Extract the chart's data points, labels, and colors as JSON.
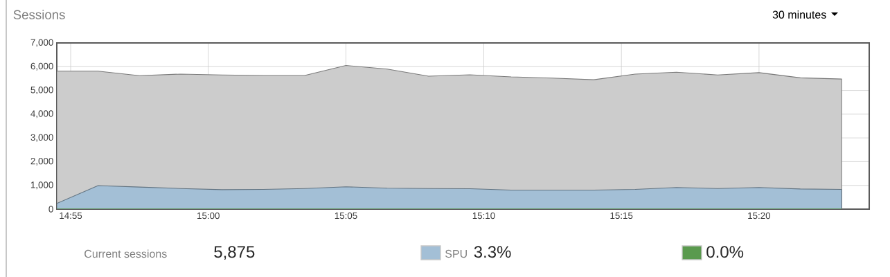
{
  "chart_data": {
    "type": "area",
    "title": "Sessions",
    "x": [
      14.9083,
      14.9333,
      14.9583,
      14.9833,
      15.0083,
      15.0333,
      15.0583,
      15.0833,
      15.1083,
      15.1333,
      15.1583,
      15.1833,
      15.2083,
      15.2333,
      15.2583,
      15.2833,
      15.3083,
      15.3333,
      15.3583,
      15.3833
    ],
    "series": [
      {
        "color": "#cccccc",
        "values": [
          5810,
          5810,
          5620,
          5690,
          5650,
          5630,
          5630,
          6050,
          5900,
          5600,
          5660,
          5570,
          5520,
          5450,
          5690,
          5770,
          5650,
          5750,
          5530,
          5480
        ]
      },
      {
        "name": "SPU",
        "color": "#a3bfd6",
        "values": [
          240,
          990,
          930,
          870,
          820,
          830,
          870,
          940,
          880,
          870,
          860,
          800,
          800,
          800,
          830,
          910,
          870,
          910,
          850,
          830
        ]
      },
      {
        "type": "line",
        "color": "#5a9a4e",
        "values": [
          0,
          0,
          0,
          0,
          0,
          0,
          0,
          0,
          0,
          0,
          0,
          0,
          0,
          0,
          0,
          0,
          0,
          0,
          0,
          0
        ]
      }
    ],
    "xlim": [
      14.9083,
      15.4
    ],
    "xticks": [
      {
        "value": 14.9167,
        "label": "14:55"
      },
      {
        "value": 15.0,
        "label": "15:00"
      },
      {
        "value": 15.0833,
        "label": "15:05"
      },
      {
        "value": 15.1667,
        "label": "15:10"
      },
      {
        "value": 15.25,
        "label": "15:15"
      },
      {
        "value": 15.3333,
        "label": "15:20"
      }
    ],
    "ylim": [
      0,
      7000
    ],
    "yticks": [
      0,
      {
        "value": 1000,
        "label": "1,000"
      },
      {
        "value": 2000,
        "label": "2,000"
      },
      {
        "value": 3000,
        "label": "3,000"
      },
      {
        "value": 4000,
        "label": "4,000"
      },
      {
        "value": 5000,
        "label": "5,000"
      },
      {
        "value": 6000,
        "label": "6,000"
      },
      {
        "value": 7000,
        "label": "7,000"
      }
    ],
    "grid": true,
    "legend": "bottom",
    "annotations": [
      "30 minutes",
      "Current sessions",
      "5,875",
      "3.3%",
      "0.0%"
    ]
  }
}
